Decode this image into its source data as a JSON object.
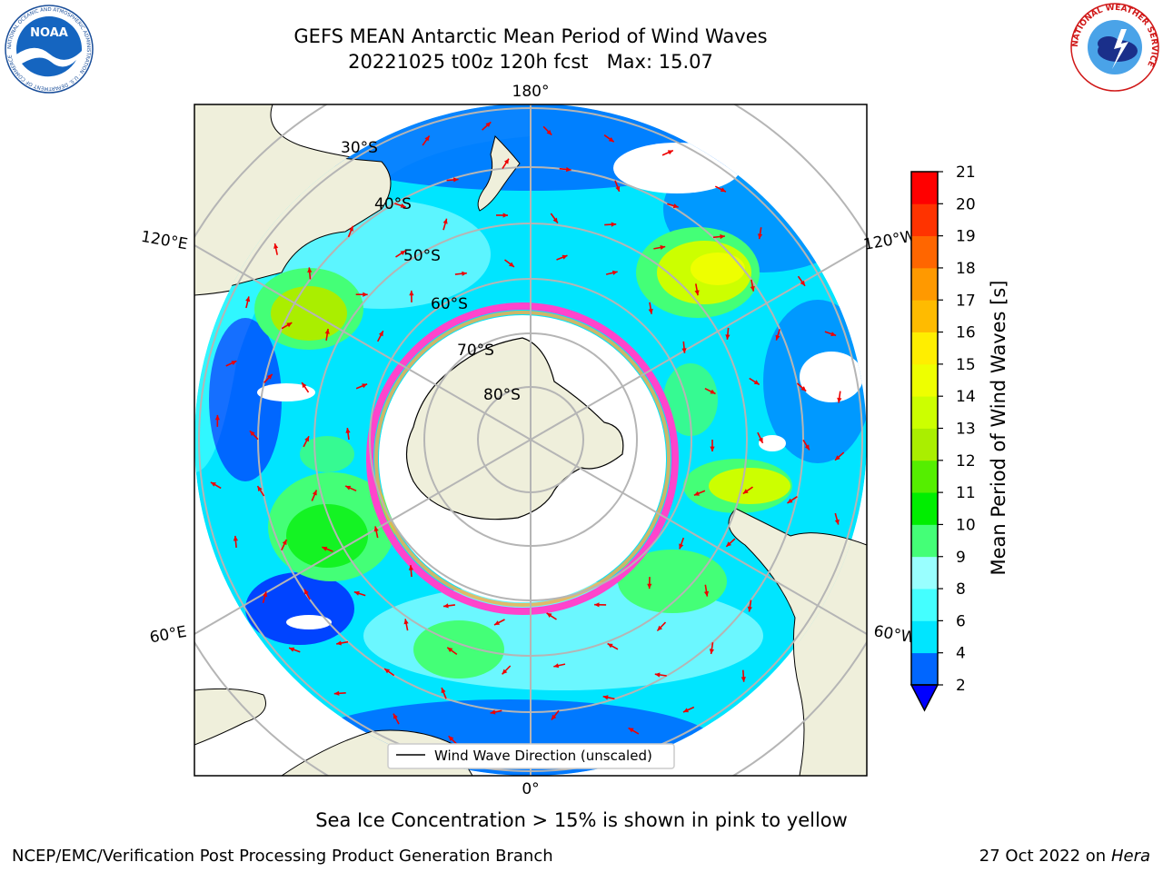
{
  "header": {
    "title_line1": "GEFS MEAN Antarctic Mean Period of Wind Waves",
    "title_line2": "20221025 t00z 120h fcst   Max: 15.07"
  },
  "logos": {
    "left_text": "NOAA",
    "left_ring_text": "NATIONAL OCEANIC AND ATMOSPHERIC ADMINISTRATION · U.S. DEPARTMENT OF COMMERCE",
    "right_ring_text": "NATIONAL WEATHER SERVICE"
  },
  "map": {
    "longitude_labels": {
      "top": "180°",
      "bottom": "0°",
      "upper_left": "120°E",
      "upper_right": "120°W",
      "lower_left": "60°E",
      "lower_right": "60°W"
    },
    "latitude_labels": [
      "30°S",
      "40°S",
      "50°S",
      "60°S",
      "70°S",
      "80°S"
    ],
    "legend_label": "Wind Wave Direction (unscaled)"
  },
  "colorbar": {
    "label": "Mean Period of Wind Waves [s]",
    "ticks": [
      "2",
      "4",
      "6",
      "8",
      "9",
      "10",
      "11",
      "12",
      "13",
      "14",
      "15",
      "16",
      "17",
      "18",
      "19",
      "20",
      "21"
    ],
    "colors": [
      "#0066ff",
      "#00e5ff",
      "#44ffff",
      "#99ffff",
      "#44ff77",
      "#00ee00",
      "#55ee00",
      "#aaee00",
      "#ccff00",
      "#eeff00",
      "#ffee00",
      "#ffbb00",
      "#ff9900",
      "#ff6600",
      "#ff3300",
      "#ff0000"
    ],
    "under_color": "#0000ff"
  },
  "caption": "Sea Ice Concentration > 15% is shown in pink to yellow",
  "footer": {
    "left": "NCEP/EMC/Verification Post Processing Product Generation Branch",
    "right_prefix": "27 Oct 2022 on ",
    "right_machine": "Hera"
  }
}
